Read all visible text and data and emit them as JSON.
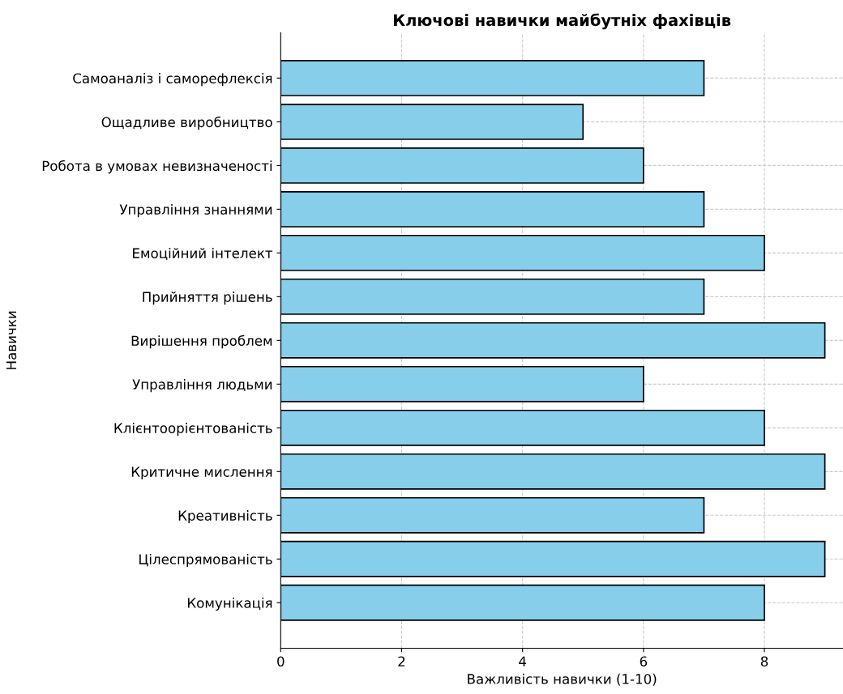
{
  "chart_data": {
    "type": "bar",
    "orientation": "horizontal",
    "title": "Ключові навички майбутніх фахівців",
    "xlabel": "Важливість навички (1-10)",
    "ylabel": "Навички",
    "categories": [
      "Самоаналіз і саморефлексія",
      "Ощадливе виробництво",
      "Робота в умовах невизначеності",
      "Управління знаннями",
      "Емоційний інтелект",
      "Прийняття рішень",
      "Вирішення проблем",
      "Управління людьми",
      "Клієнтоорієнтованість",
      "Критичне мислення",
      "Креативність",
      "Цілеспрямованість",
      "Комунікація"
    ],
    "values": [
      7,
      5,
      6,
      7,
      8,
      7,
      9,
      6,
      8,
      9,
      7,
      9,
      8
    ],
    "color": "#87ceeb",
    "xlim": [
      0,
      9.3
    ],
    "xticks": [
      0,
      2,
      4,
      6,
      8
    ],
    "grid": true,
    "legend": false
  }
}
